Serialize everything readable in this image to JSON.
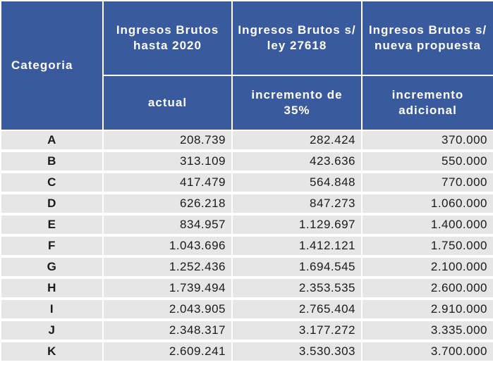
{
  "table": {
    "header": {
      "category": "Categoria",
      "col1_title": "Ingresos Brutos hasta 2020",
      "col2_title": "Ingresos Brutos s/ ley 27618",
      "col3_title": "Ingresos Brutos s/ nueva propuesta",
      "col1_sub": "actual",
      "col2_sub": "incremento de 35%",
      "col3_sub": "incremento adicional"
    },
    "rows": [
      {
        "category": "A",
        "v1": "208.739",
        "v2": "282.424",
        "v3": "370.000"
      },
      {
        "category": "B",
        "v1": "313.109",
        "v2": "423.636",
        "v3": "550.000"
      },
      {
        "category": "C",
        "v1": "417.479",
        "v2": "564.848",
        "v3": "770.000"
      },
      {
        "category": "D",
        "v1": "626.218",
        "v2": "847.273",
        "v3": "1.060.000"
      },
      {
        "category": "E",
        "v1": "834.957",
        "v2": "1.129.697",
        "v3": "1.400.000"
      },
      {
        "category": "F",
        "v1": "1.043.696",
        "v2": "1.412.121",
        "v3": "1.750.000"
      },
      {
        "category": "G",
        "v1": "1.252.436",
        "v2": "1.694.545",
        "v3": "2.100.000"
      },
      {
        "category": "H",
        "v1": "1.739.494",
        "v2": "2.353.535",
        "v3": "2.600.000"
      },
      {
        "category": "I",
        "v1": "2.043.905",
        "v2": "2.765.404",
        "v3": "2.910.000"
      },
      {
        "category": "J",
        "v1": "2.348.317",
        "v2": "3.177.272",
        "v3": "3.335.000"
      },
      {
        "category": "K",
        "v1": "2.609.241",
        "v2": "3.530.303",
        "v3": "3.700.000"
      }
    ]
  },
  "colors": {
    "header_bg": "#3a5a9e",
    "header_text": "#ffffff",
    "row_bg": "#e6e6e6"
  }
}
